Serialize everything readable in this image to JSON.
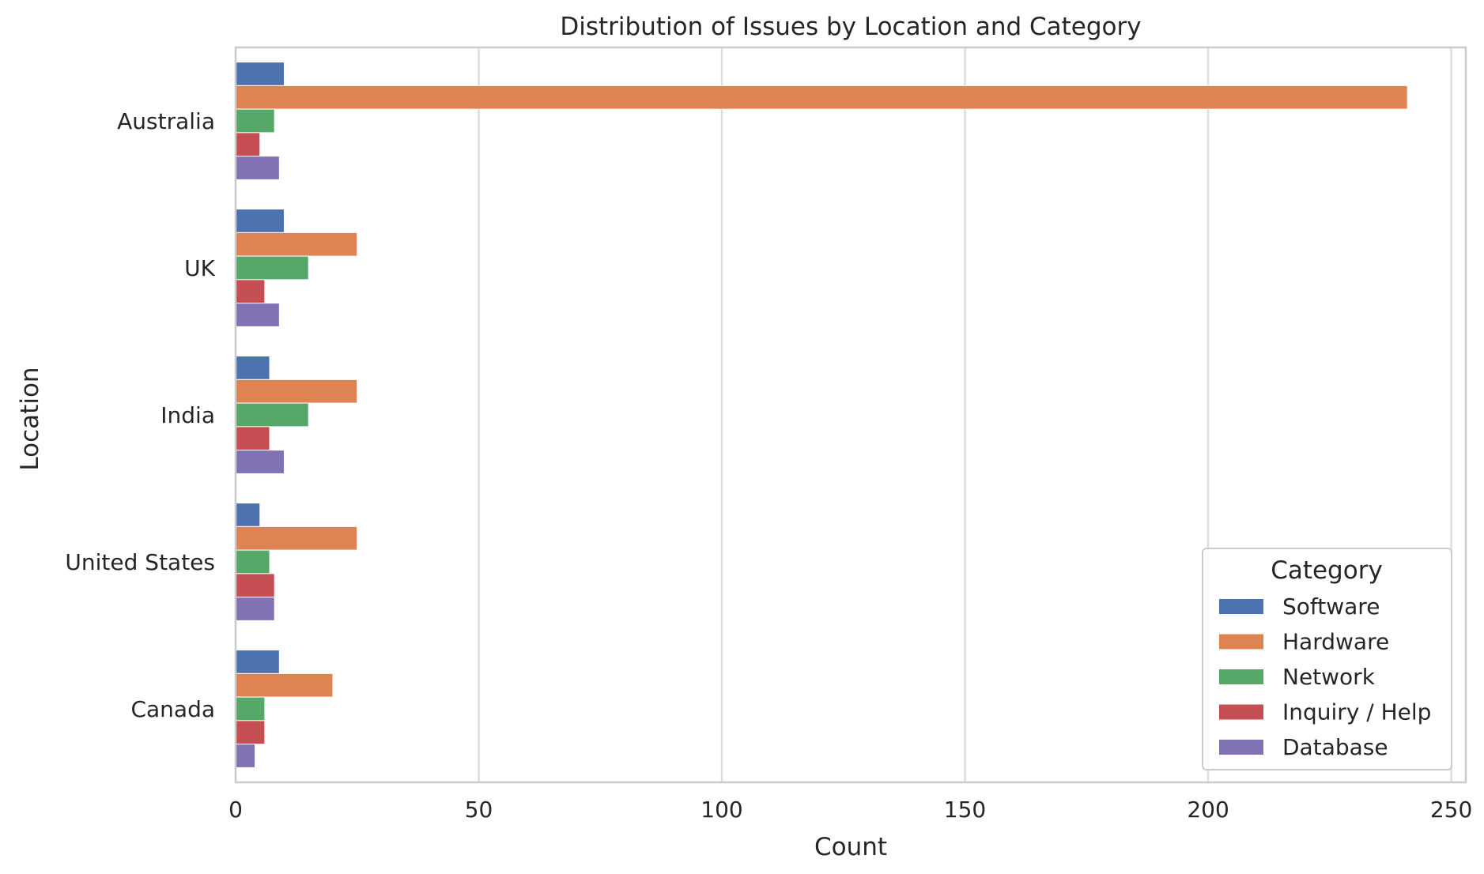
{
  "chart_data": {
    "type": "bar",
    "orientation": "horizontal",
    "title": "Distribution of Issues by Location and Category",
    "xlabel": "Count",
    "ylabel": "Location",
    "xlim": [
      0,
      253
    ],
    "xticks": [
      0,
      50,
      100,
      150,
      200,
      250
    ],
    "grid": true,
    "legend_position": "lower right",
    "legend_title": "Category",
    "categories": [
      "Australia",
      "UK",
      "India",
      "United States",
      "Canada"
    ],
    "series": [
      {
        "name": "Software",
        "color": "#4c72b0",
        "values": [
          10,
          10,
          7,
          5,
          9
        ]
      },
      {
        "name": "Hardware",
        "color": "#dd8452",
        "values": [
          241,
          25,
          25,
          25,
          20
        ]
      },
      {
        "name": "Network",
        "color": "#55a868",
        "values": [
          8,
          15,
          15,
          7,
          6
        ]
      },
      {
        "name": "Inquiry / Help",
        "color": "#c44e52",
        "values": [
          5,
          6,
          7,
          8,
          6
        ]
      },
      {
        "name": "Database",
        "color": "#8172b3",
        "values": [
          9,
          9,
          10,
          8,
          4
        ]
      }
    ]
  }
}
